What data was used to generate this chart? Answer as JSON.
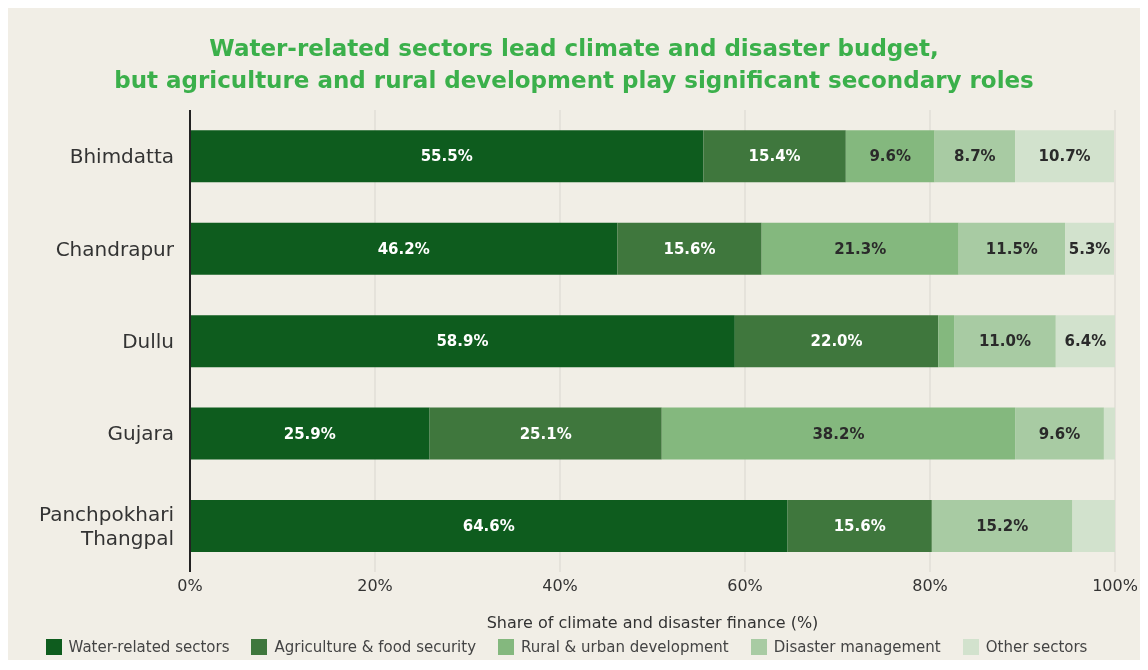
{
  "chart_data": {
    "type": "bar",
    "orientation": "horizontal",
    "stacked": true,
    "title": "Water-related sectors lead climate and disaster budget,\nbut agriculture and rural development play significant secondary roles",
    "xlabel": "Share of climate and disaster finance (%)",
    "categories": [
      "Bhimdatta",
      "Chandrapur",
      "Dullu",
      "Gujara",
      "Panchpokhari\nThangpal"
    ],
    "series": [
      {
        "name": "Water-related sectors",
        "color": "#0e5c1e",
        "values": [
          55.5,
          46.2,
          58.9,
          25.9,
          64.6
        ],
        "value_labels": [
          "55.5%",
          "46.2%",
          "58.9%",
          "25.9%",
          "64.6%"
        ]
      },
      {
        "name": "Agriculture & food security",
        "color": "#3f773d",
        "values": [
          15.4,
          15.6,
          22.0,
          25.1,
          15.6
        ],
        "value_labels": [
          "15.4%",
          "15.6%",
          "22.0%",
          "25.1%",
          "15.6%"
        ]
      },
      {
        "name": "Rural & urban development",
        "color": "#84b87e",
        "values": [
          9.6,
          21.3,
          1.7,
          38.2,
          0
        ],
        "value_labels": [
          "9.6%",
          "21.3%",
          null,
          "38.2%",
          null
        ]
      },
      {
        "name": "Disaster management",
        "color": "#a8cba3",
        "values": [
          8.7,
          11.5,
          11.0,
          9.6,
          15.2
        ],
        "value_labels": [
          "8.7%",
          "11.5%",
          "11.0%",
          "9.6%",
          "15.2%"
        ]
      },
      {
        "name": "Other sectors",
        "color": "#d2e2cd",
        "values": [
          10.7,
          5.3,
          6.4,
          1.2,
          4.6
        ],
        "value_labels": [
          "10.7%",
          "5.3%",
          "6.4%",
          null,
          null
        ]
      }
    ],
    "xlim": [
      0,
      100
    ],
    "xticks": [
      {
        "value": 0,
        "label": "0%"
      },
      {
        "value": 20,
        "label": "20%"
      },
      {
        "value": 40,
        "label": "40%"
      },
      {
        "value": 60,
        "label": "60%"
      },
      {
        "value": 80,
        "label": "80%"
      },
      {
        "value": 100,
        "label": "100%"
      }
    ],
    "grid": "x",
    "legend": "bottom"
  }
}
